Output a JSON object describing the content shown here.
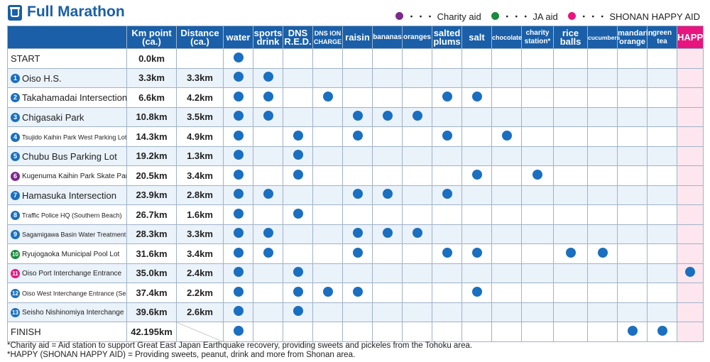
{
  "title": "Full Marathon",
  "legend": [
    {
      "label": "・・・ Charity aid",
      "color": "#7b2a8c"
    },
    {
      "label": "・・・ JA aid",
      "color": "#1a8a3c"
    },
    {
      "label": "・・・ SHONAN HAPPY AID",
      "color": "#e6167e"
    }
  ],
  "columns": [
    {
      "key": "km",
      "label": "Km point (ca.)"
    },
    {
      "key": "dist",
      "label": "Distance (ca.)"
    },
    {
      "key": "water",
      "label": "water"
    },
    {
      "key": "sports",
      "label": "sports drink"
    },
    {
      "key": "dns_red",
      "label": "DNS R.E.D."
    },
    {
      "key": "dns_ion",
      "label": "DNS ION CHARGE"
    },
    {
      "key": "raisin",
      "label": "raisin"
    },
    {
      "key": "bananas",
      "label": "bananas"
    },
    {
      "key": "oranges",
      "label": "oranges"
    },
    {
      "key": "plums",
      "label": "salted plums"
    },
    {
      "key": "salt",
      "label": "salt"
    },
    {
      "key": "chocolate",
      "label": "chocolate"
    },
    {
      "key": "charity",
      "label": "charity station*"
    },
    {
      "key": "riceballs",
      "label": "rice balls"
    },
    {
      "key": "cucumbers",
      "label": "cucumbers"
    },
    {
      "key": "mandarin",
      "label": "mandarin orange"
    },
    {
      "key": "greentea",
      "label": "green tea"
    },
    {
      "key": "happy",
      "label": "HAPPY"
    }
  ],
  "rows": [
    {
      "num": "",
      "num_color": "",
      "name": "START",
      "km": "0.0km",
      "dist": "",
      "dots": [
        1,
        0,
        0,
        0,
        0,
        0,
        0,
        0,
        0,
        0,
        0,
        0,
        0,
        0,
        0,
        0
      ]
    },
    {
      "num": "1",
      "num_color": "#1a6fc0",
      "name": "Oiso H.S.",
      "km": "3.3km",
      "dist": "3.3km",
      "dots": [
        1,
        1,
        0,
        0,
        0,
        0,
        0,
        0,
        0,
        0,
        0,
        0,
        0,
        0,
        0,
        0
      ]
    },
    {
      "num": "2",
      "num_color": "#1a6fc0",
      "name": "Takahamadai Intersection",
      "km": "6.6km",
      "dist": "4.2km",
      "dots": [
        1,
        1,
        0,
        1,
        0,
        0,
        0,
        1,
        1,
        0,
        0,
        0,
        0,
        0,
        0,
        0
      ]
    },
    {
      "num": "3",
      "num_color": "#1a6fc0",
      "name": "Chigasaki Park",
      "km": "10.8km",
      "dist": "3.5km",
      "dots": [
        1,
        1,
        0,
        0,
        1,
        1,
        1,
        0,
        0,
        0,
        0,
        0,
        0,
        0,
        0,
        0
      ]
    },
    {
      "num": "4",
      "num_color": "#1a6fc0",
      "name": "Tsujido Kaihin Park West Parking Lot",
      "km": "14.3km",
      "dist": "4.9km",
      "dots": [
        1,
        0,
        1,
        0,
        1,
        0,
        0,
        1,
        0,
        1,
        0,
        0,
        0,
        0,
        0,
        0
      ]
    },
    {
      "num": "5",
      "num_color": "#1a6fc0",
      "name": "Chubu Bus Parking Lot",
      "km": "19.2km",
      "dist": "1.3km",
      "dots": [
        1,
        0,
        1,
        0,
        0,
        0,
        0,
        0,
        0,
        0,
        0,
        0,
        0,
        0,
        0,
        0
      ]
    },
    {
      "num": "6",
      "num_color": "#7b2a8c",
      "name": "Kugenuma Kaihin Park Skate Park",
      "km": "20.5km",
      "dist": "3.4km",
      "dots": [
        1,
        0,
        1,
        0,
        0,
        0,
        0,
        0,
        1,
        0,
        1,
        0,
        0,
        0,
        0,
        0
      ]
    },
    {
      "num": "7",
      "num_color": "#1a6fc0",
      "name": "Hamasuka Intersection",
      "km": "23.9km",
      "dist": "2.8km",
      "dots": [
        1,
        1,
        0,
        0,
        1,
        1,
        0,
        1,
        0,
        0,
        0,
        0,
        0,
        0,
        0,
        0
      ]
    },
    {
      "num": "8",
      "num_color": "#1a6fc0",
      "name": "Traffic Police HQ (Southern Beach)",
      "km": "26.7km",
      "dist": "1.6km",
      "dots": [
        1,
        0,
        1,
        0,
        0,
        0,
        0,
        0,
        0,
        0,
        0,
        0,
        0,
        0,
        0,
        0
      ]
    },
    {
      "num": "9",
      "num_color": "#1a6fc0",
      "name": "Sagamigawa Basin Water Treatment Facility",
      "km": "28.3km",
      "dist": "3.3km",
      "dots": [
        1,
        1,
        0,
        0,
        1,
        1,
        1,
        0,
        0,
        0,
        0,
        0,
        0,
        0,
        0,
        0
      ]
    },
    {
      "num": "10",
      "num_color": "#1a8a3c",
      "name": "Ryujogaoka Municipal Pool Lot",
      "km": "31.6km",
      "dist": "3.4km",
      "dots": [
        1,
        1,
        0,
        0,
        1,
        0,
        0,
        1,
        1,
        0,
        0,
        1,
        1,
        0,
        0,
        0
      ]
    },
    {
      "num": "11",
      "num_color": "#e6167e",
      "name": "Oiso Port Interchange Entrance",
      "km": "35.0km",
      "dist": "2.4km",
      "dots": [
        1,
        0,
        1,
        0,
        0,
        0,
        0,
        0,
        0,
        0,
        0,
        0,
        0,
        0,
        0,
        1
      ]
    },
    {
      "num": "12",
      "num_color": "#1a6fc0",
      "name": "Oiso West Interchange Entrance (Sea side)",
      "km": "37.4km",
      "dist": "2.2km",
      "dots": [
        1,
        0,
        1,
        1,
        1,
        0,
        0,
        0,
        1,
        0,
        0,
        0,
        0,
        0,
        0,
        0
      ]
    },
    {
      "num": "13",
      "num_color": "#1a6fc0",
      "name": "Seisho Nishinomiya Interchange",
      "km": "39.6km",
      "dist": "2.6km",
      "dots": [
        1,
        0,
        1,
        0,
        0,
        0,
        0,
        0,
        0,
        0,
        0,
        0,
        0,
        0,
        0,
        0
      ]
    },
    {
      "num": "",
      "num_color": "",
      "name": "FINISH",
      "km": "42.195km",
      "dist": "",
      "dots": [
        1,
        0,
        0,
        0,
        0,
        0,
        0,
        0,
        0,
        0,
        0,
        0,
        0,
        1,
        1,
        0
      ]
    }
  ],
  "notes": [
    "*Charity aid = Aid station to support Great East Japan Earthquake recovery, providing sweets and pickeles from the Tohoku area.",
    "*HAPPY (SHONAN HAPPY AID) = Providing sweets, peanut, drink and more from Shonan area."
  ],
  "colors": {
    "header": "#1a5fa8",
    "dot": "#1a6fc0",
    "happy": "#e6167e"
  }
}
